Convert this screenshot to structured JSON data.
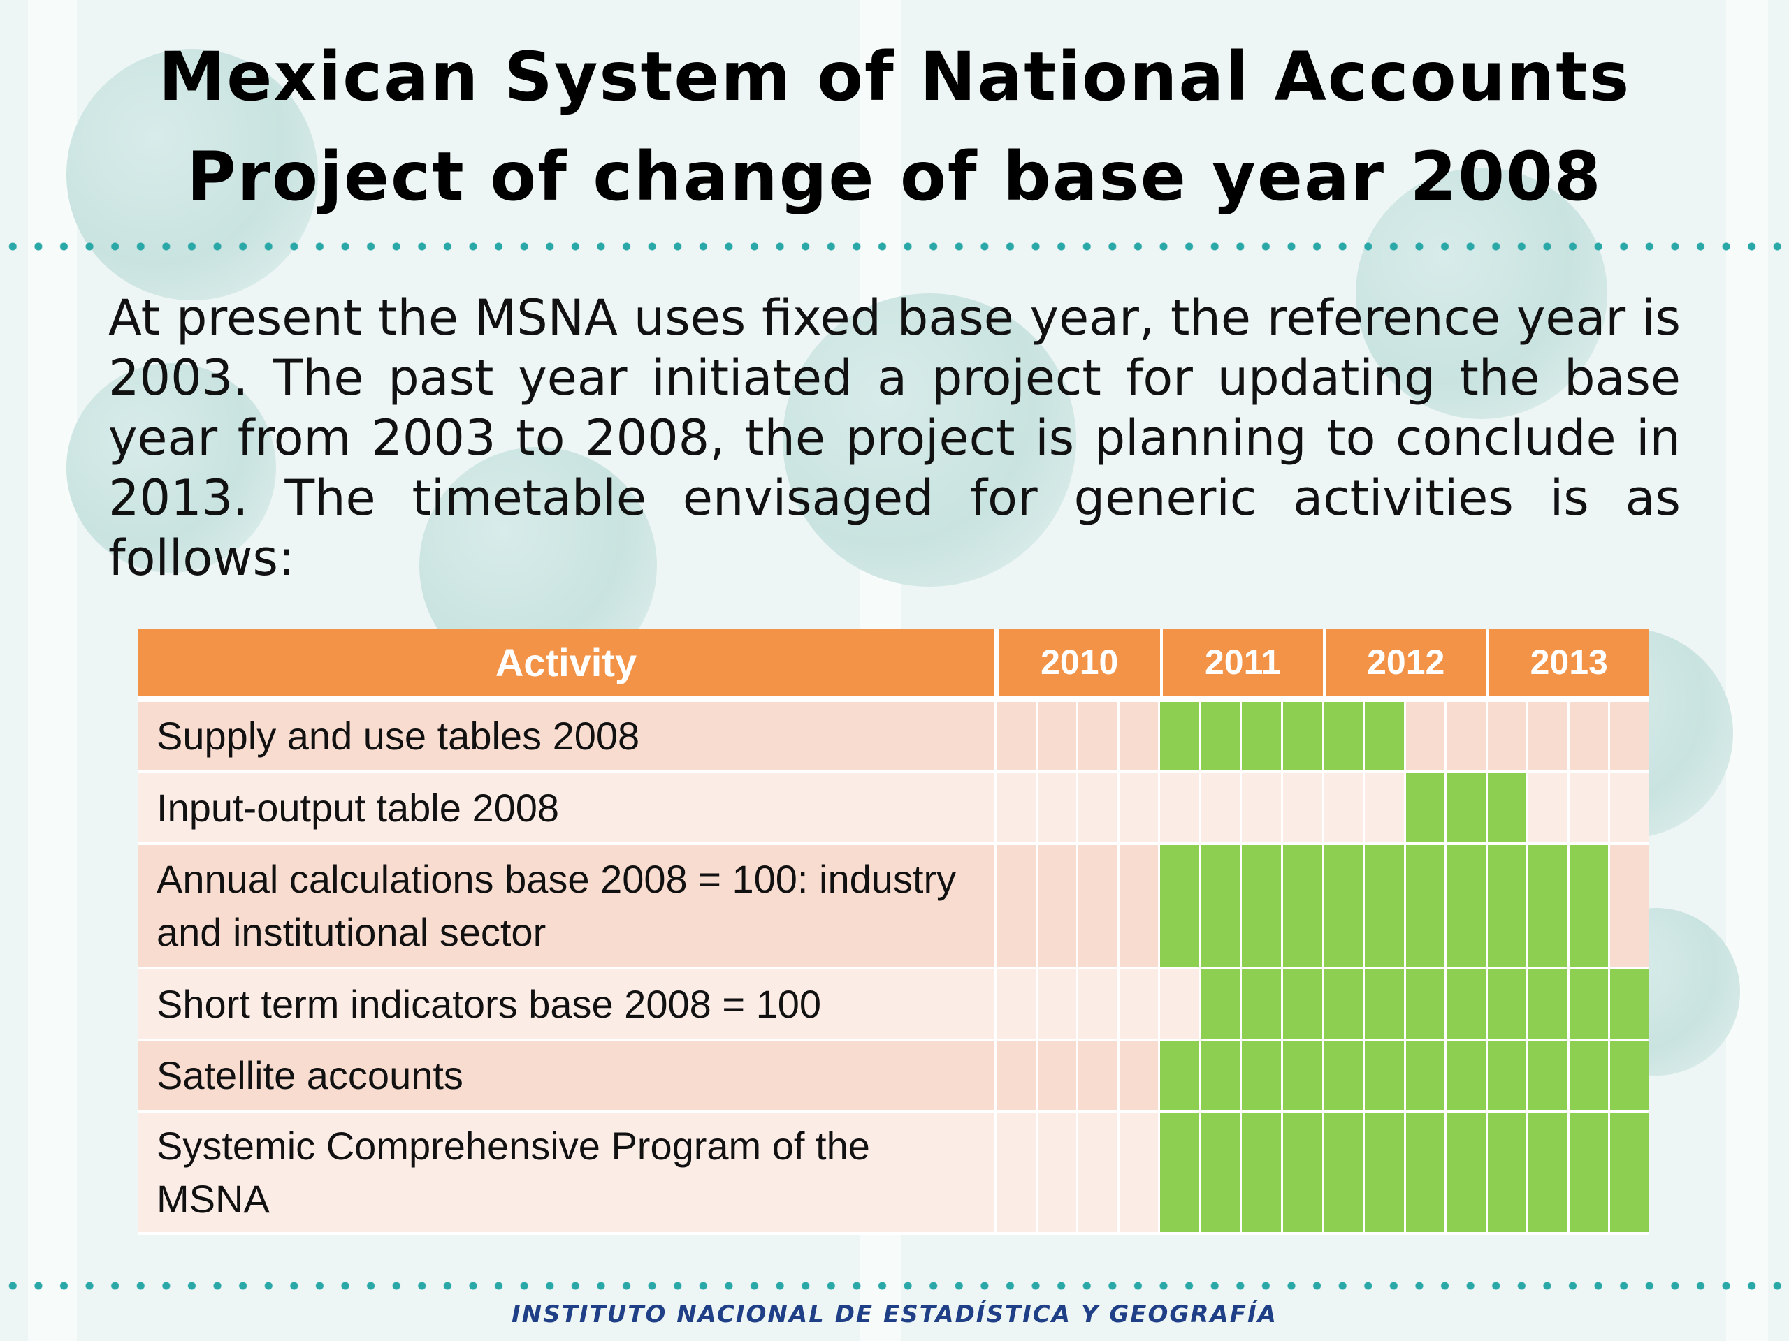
{
  "title": {
    "line1": "Mexican System of National Accounts",
    "line2": "Project of change of base year 2008"
  },
  "intro": "At present the MSNA uses fixed base year, the reference year is 2003. The past year initiated a project for updating the base year from 2003 to 2008, the project is planning to conclude in 2013. The timetable envisaged for generic activities is as follows:",
  "table": {
    "activity_header": "Activity",
    "years": [
      "2010",
      "2011",
      "2012",
      "2013"
    ],
    "quarters_per_year": 4,
    "rows": [
      {
        "label": "Supply and use tables 2008",
        "active": [
          4,
          5,
          6,
          7,
          8,
          9
        ]
      },
      {
        "label": "Input-output table 2008",
        "active": [
          10,
          11,
          12
        ]
      },
      {
        "label": "Annual calculations base 2008 = 100: industry and institutional sector",
        "active": [
          4,
          5,
          6,
          7,
          8,
          9,
          10,
          11,
          12,
          13,
          14
        ]
      },
      {
        "label": "Short term indicators  base 2008 = 100",
        "active": [
          5,
          6,
          7,
          8,
          9,
          10,
          11,
          12,
          13,
          14,
          15
        ]
      },
      {
        "label": "Satellite accounts",
        "active": [
          4,
          5,
          6,
          7,
          8,
          9,
          10,
          11,
          12,
          13,
          14,
          15
        ]
      },
      {
        "label": "Systemic Comprehensive Program of the MSNA",
        "active": [
          4,
          5,
          6,
          7,
          8,
          9,
          10,
          11,
          12,
          13,
          14,
          15
        ]
      }
    ]
  },
  "colors": {
    "header": "#f39348",
    "active_cell": "#8dcf50",
    "row_odd": "#f9dcd0",
    "row_even": "#fcece6"
  },
  "footer": "INSTITUTO NACIONAL  DE ESTADÍSTICA Y GEOGRAFÍA"
}
